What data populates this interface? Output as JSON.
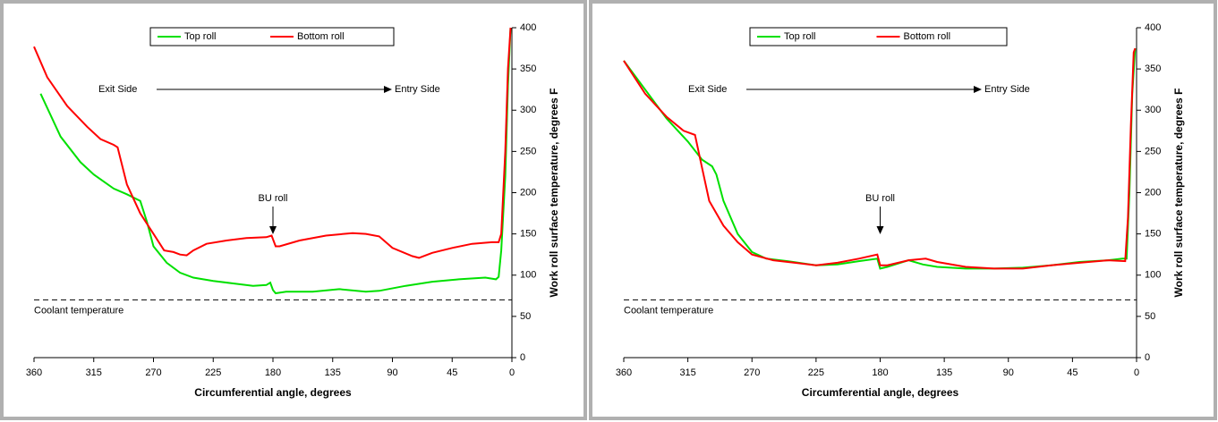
{
  "chart_data": [
    {
      "type": "line",
      "xlabel": "Circumferential angle, degrees",
      "ylabel": "Work roll surface temperature, degrees F",
      "xlim": [
        360,
        0
      ],
      "xticks": [
        360,
        315,
        270,
        225,
        180,
        135,
        90,
        45,
        0
      ],
      "ylim": [
        0,
        400
      ],
      "yticks": [
        0,
        50,
        100,
        150,
        200,
        250,
        300,
        350,
        400
      ],
      "y_axis_side": "right",
      "legend": "top",
      "annotations": {
        "exit": "Exit Side",
        "entry": "Entry Side",
        "bu": "BU roll"
      },
      "reference_line": {
        "label": "Coolant temperature",
        "value": 70
      },
      "series": [
        {
          "name": "Top roll",
          "color": "#00e000",
          "x": [
            355,
            340,
            325,
            315,
            300,
            290,
            280,
            275,
            270,
            260,
            250,
            240,
            225,
            210,
            195,
            185,
            182,
            180,
            178,
            170,
            150,
            130,
            110,
            100,
            80,
            60,
            40,
            20,
            12,
            10,
            8,
            5,
            3,
            1
          ],
          "values": [
            320,
            268,
            237,
            222,
            205,
            198,
            190,
            165,
            135,
            115,
            103,
            97,
            93,
            90,
            87,
            88,
            91,
            82,
            78,
            80,
            80,
            83,
            80,
            81,
            87,
            92,
            95,
            97,
            95,
            98,
            130,
            220,
            330,
            400
          ]
        },
        {
          "name": "Bottom roll",
          "color": "#ff0000",
          "x": [
            360,
            350,
            335,
            320,
            310,
            300,
            297,
            290,
            280,
            270,
            262,
            255,
            250,
            245,
            240,
            230,
            215,
            200,
            185,
            181,
            178,
            175,
            160,
            140,
            120,
            110,
            100,
            90,
            75,
            70,
            60,
            45,
            30,
            15,
            10,
            8,
            5,
            3,
            1
          ],
          "values": [
            377,
            340,
            305,
            280,
            265,
            258,
            255,
            210,
            175,
            150,
            130,
            128,
            125,
            124,
            130,
            138,
            142,
            145,
            146,
            148,
            135,
            135,
            142,
            148,
            151,
            150,
            147,
            133,
            123,
            121,
            127,
            133,
            138,
            140,
            140,
            150,
            250,
            350,
            400
          ]
        }
      ]
    },
    {
      "type": "line",
      "xlabel": "Circumferential angle, degrees",
      "ylabel": "Work roll surface temperature, degrees F",
      "xlim": [
        360,
        0
      ],
      "xticks": [
        360,
        315,
        270,
        225,
        180,
        135,
        90,
        45,
        0
      ],
      "ylim": [
        0,
        400
      ],
      "yticks": [
        0,
        50,
        100,
        150,
        200,
        250,
        300,
        350,
        400
      ],
      "y_axis_side": "right",
      "legend": "top",
      "annotations": {
        "exit": "Exit Side",
        "entry": "Entry Side",
        "bu": "BU roll"
      },
      "reference_line": {
        "label": "Coolant temperature",
        "value": 70
      },
      "series": [
        {
          "name": "Top roll",
          "color": "#00e000",
          "x": [
            360,
            345,
            330,
            315,
            305,
            298,
            295,
            290,
            280,
            270,
            260,
            245,
            225,
            210,
            195,
            182,
            180,
            175,
            160,
            150,
            140,
            120,
            100,
            80,
            60,
            40,
            20,
            10,
            7,
            5,
            3,
            1
          ],
          "values": [
            360,
            325,
            290,
            262,
            240,
            232,
            222,
            190,
            150,
            128,
            120,
            117,
            112,
            113,
            117,
            120,
            108,
            110,
            118,
            113,
            110,
            108,
            108,
            109,
            112,
            116,
            118,
            120,
            120,
            200,
            320,
            375
          ]
        },
        {
          "name": "Bottom roll",
          "color": "#ff0000",
          "x": [
            360,
            345,
            330,
            318,
            310,
            305,
            300,
            290,
            280,
            270,
            255,
            240,
            225,
            210,
            195,
            182,
            180,
            175,
            160,
            148,
            140,
            120,
            100,
            80,
            60,
            40,
            20,
            8,
            6,
            4,
            2,
            1
          ],
          "values": [
            360,
            320,
            292,
            275,
            270,
            230,
            190,
            160,
            140,
            125,
            118,
            115,
            112,
            115,
            120,
            125,
            112,
            112,
            118,
            120,
            116,
            110,
            108,
            108,
            112,
            115,
            118,
            117,
            170,
            280,
            370,
            375
          ]
        }
      ]
    }
  ]
}
